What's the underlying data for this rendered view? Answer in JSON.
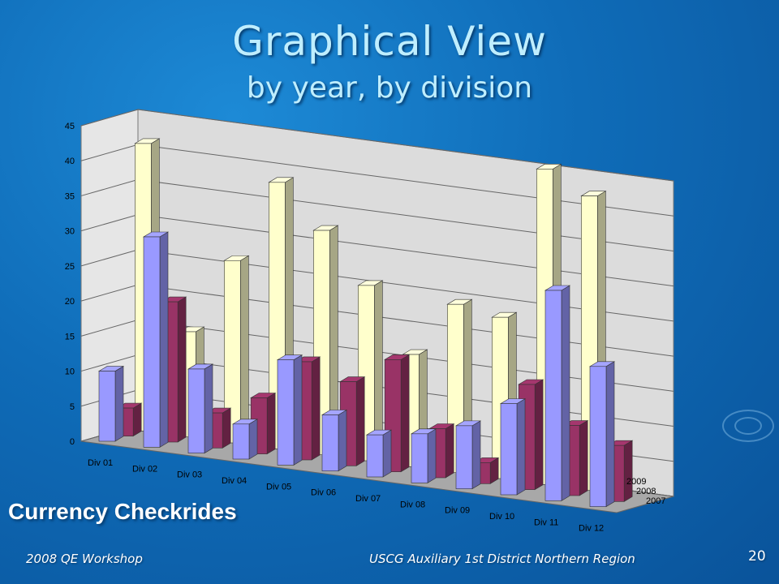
{
  "slide": {
    "title": "Graphical View",
    "subtitle": "by year, by division",
    "caption": "Currency Checkrides",
    "footer_left": "2008 QE Workshop",
    "footer_center": "USCG Auxiliary 1st District Northern Region",
    "slide_number": "20"
  },
  "chart_data": {
    "type": "bar",
    "title": "",
    "xlabel": "",
    "ylabel": "",
    "ylim": [
      0,
      45
    ],
    "yticks": [
      "0",
      "5",
      "10",
      "15",
      "20",
      "25",
      "30",
      "35",
      "40",
      "45"
    ],
    "categories": [
      "Div 01",
      "Div 02",
      "Div 03",
      "Div 04",
      "Div 05",
      "Div 06",
      "Div 07",
      "Div 08",
      "Div 09",
      "Div 10",
      "Div 11",
      "Div 12"
    ],
    "series": [
      {
        "name": "2007",
        "color": "#9999ff",
        "values": [
          10,
          30,
          12,
          5,
          15,
          8,
          6,
          7,
          9,
          13,
          30,
          20
        ]
      },
      {
        "name": "2008",
        "color": "#993366",
        "values": [
          4,
          20,
          5,
          8,
          14,
          12,
          16,
          7,
          3,
          15,
          10,
          8
        ]
      },
      {
        "name": "2009",
        "color": "#ffffcc",
        "values": [
          41,
          15,
          26,
          38,
          32,
          25,
          16,
          24,
          23,
          45,
          42,
          0
        ]
      }
    ],
    "grid": true,
    "legend": "right-depth-axis"
  }
}
